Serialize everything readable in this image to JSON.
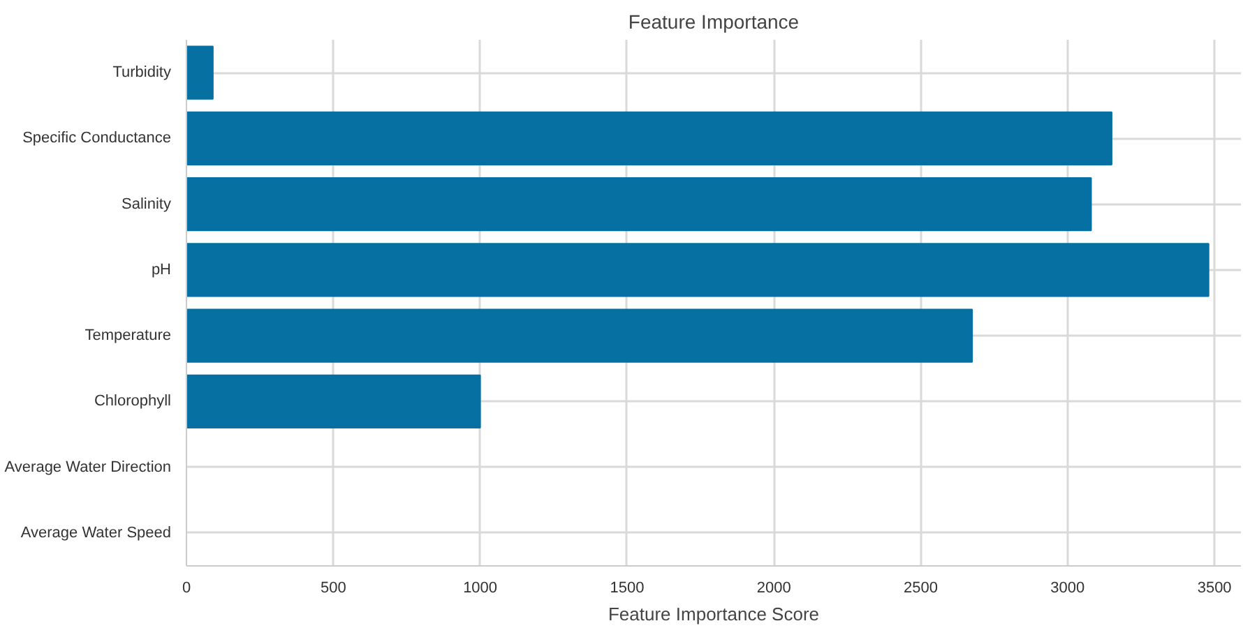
{
  "chart_data": {
    "type": "bar",
    "orientation": "horizontal",
    "title": "Feature Importance",
    "xlabel": "Feature Importance Score",
    "categories": [
      "Turbidity",
      "Specific Conductance",
      "Salinity",
      "pH",
      "Temperature",
      "Chlorophyll",
      "Average Water Direction",
      "Average Water Speed"
    ],
    "values": [
      90,
      3150,
      3080,
      3480,
      2675,
      1000,
      0,
      0
    ],
    "color": "#0570a1",
    "xlim": [
      0,
      3590
    ],
    "xticks": [
      0,
      500,
      1000,
      1500,
      2000,
      2500,
      3000,
      3500
    ],
    "grid": true
  }
}
